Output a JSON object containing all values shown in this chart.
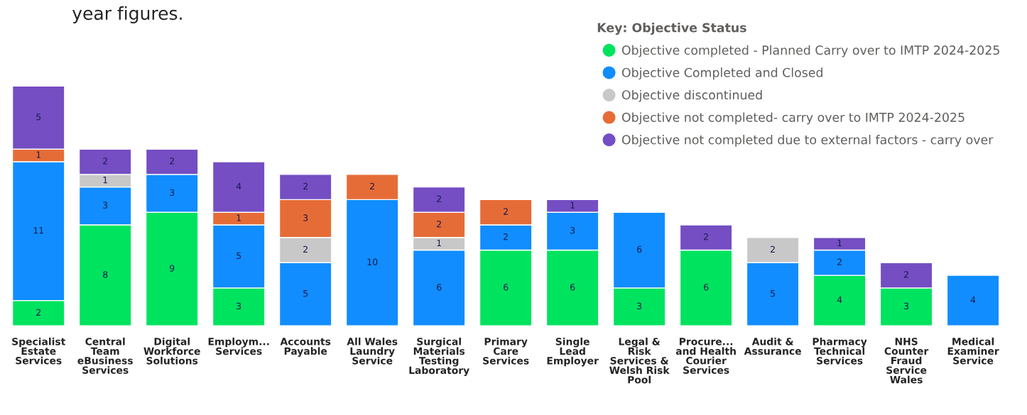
{
  "chart_data": {
    "type": "bar",
    "stacked": true,
    "data_labels": true,
    "legend": "top right",
    "legend_title": "Key: Objective Status",
    "grid": false,
    "annotations": [
      "year figures."
    ],
    "categories": [
      "Specialist\nEstate\nServices",
      "Central\nTeam\neBusiness\nServices",
      "Digital\nWorkforce\nSolutions",
      "Employm...\nServices",
      "Accounts\nPayable",
      "All Wales\nLaundry\nService",
      "Surgical\nMaterials\nTesting\nLaboratory",
      "Primary\nCare\nServices",
      "Single\nLead\nEmployer",
      "Legal &\nRisk\nServices &\nWelsh Risk\nPool",
      "Procure...\nand Health\nCourier\nServices",
      "Audit &\nAssurance",
      "Pharmacy\nTechnical\nServices",
      "NHS\nCounter\nFraud\nService\nWales",
      "Medical\nExaminer\nService"
    ],
    "series": [
      {
        "name": "Objective completed - Planned Carry over to IMTP 2024-2025",
        "color": "#00e35f",
        "values": [
          2,
          8,
          9,
          3,
          null,
          null,
          null,
          6,
          6,
          3,
          6,
          null,
          4,
          3,
          null
        ]
      },
      {
        "name": "Objective Completed and Closed",
        "color": "#118dff",
        "values": [
          11,
          3,
          3,
          5,
          5,
          10,
          6,
          2,
          3,
          6,
          null,
          5,
          2,
          null,
          4
        ]
      },
      {
        "name": "Objective discontinued",
        "color": "#c8c8c8",
        "values": [
          null,
          1,
          null,
          null,
          2,
          null,
          1,
          null,
          null,
          null,
          null,
          2,
          null,
          null,
          null
        ]
      },
      {
        "name": "Objective not completed- carry over to IMTP 2024-2025",
        "color": "#e66c37",
        "values": [
          1,
          null,
          null,
          1,
          3,
          2,
          2,
          2,
          null,
          null,
          null,
          null,
          null,
          null,
          null
        ]
      },
      {
        "name": "Objective not completed due to external factors - carry over",
        "color": "#744ec2",
        "values": [
          5,
          2,
          2,
          4,
          2,
          null,
          2,
          null,
          1,
          null,
          2,
          null,
          1,
          2,
          null
        ]
      }
    ]
  }
}
